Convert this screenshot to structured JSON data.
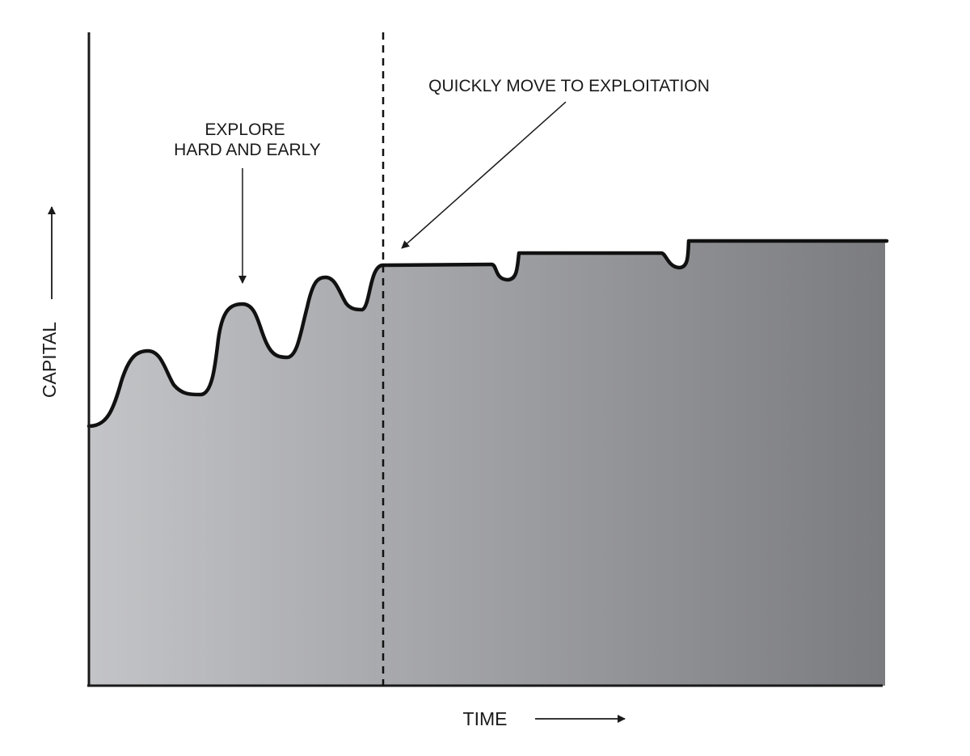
{
  "annotations": {
    "explore_line1": "EXPLORE",
    "explore_line2": "HARD AND EARLY",
    "exploit": "QUICKLY MOVE TO EXPLOITATION"
  },
  "axes": {
    "x_label": "TIME",
    "y_label": "CAPITAL"
  },
  "colors": {
    "fill_start": "#c3c4c7",
    "fill_end": "#7b7c80",
    "curve": "#111111",
    "text": "#1a1a1a"
  }
}
